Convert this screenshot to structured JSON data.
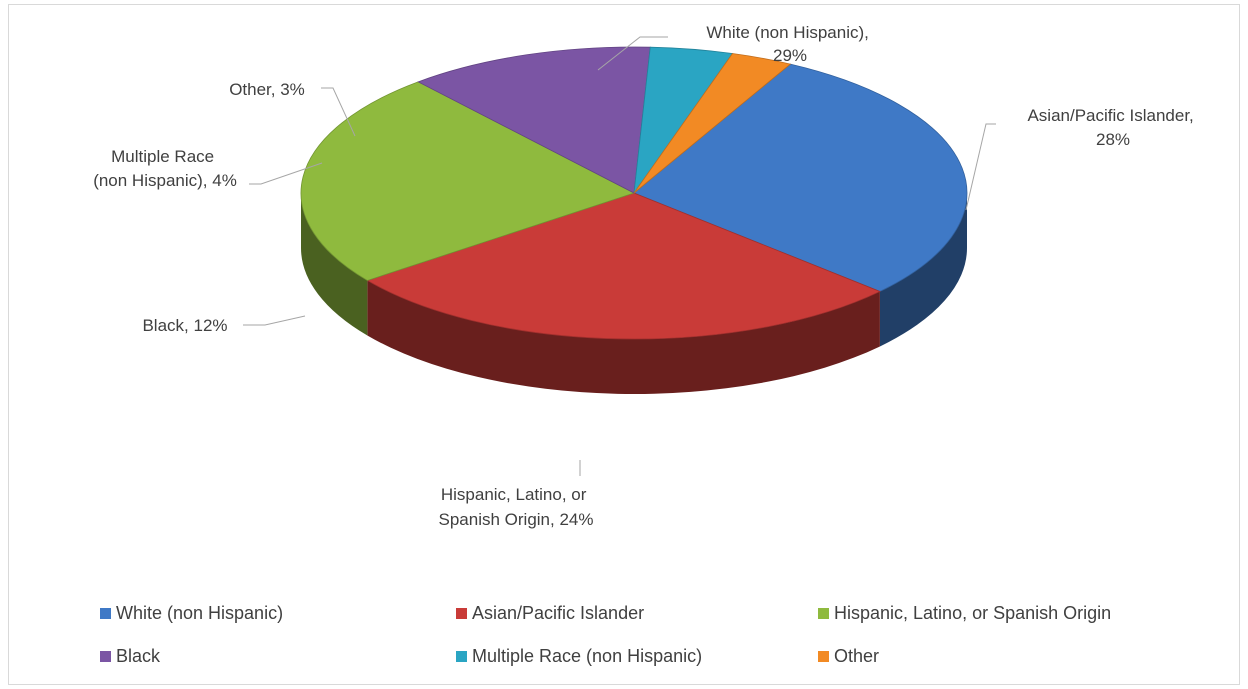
{
  "chart_data": {
    "type": "pie",
    "variant": "3d",
    "title": "",
    "slices": [
      {
        "name": "White (non Hispanic)",
        "value": 29,
        "label_line1": "White (non Hispanic),",
        "label_line2": "29%",
        "color": "#3f79c6"
      },
      {
        "name": "Asian/Pacific Islander",
        "value": 28,
        "label_line1": "Asian/Pacific Islander,",
        "label_line2": "28%",
        "color": "#c93b38"
      },
      {
        "name": "Hispanic, Latino, or Spanish Origin",
        "value": 24,
        "label_line1": "Hispanic, Latino, or",
        "label_line2": "Spanish Origin, 24%",
        "color": "#8fba3e"
      },
      {
        "name": "Black",
        "value": 12,
        "label_line1": "Black, 12%",
        "label_line2": "",
        "color": "#7b55a4"
      },
      {
        "name": "Multiple Race (non Hispanic)",
        "value": 4,
        "label_line1": "Multiple Race",
        "label_line2": "(non Hispanic), 4%",
        "color": "#2aa5c3"
      },
      {
        "name": "Other",
        "value": 3,
        "label_line1": "Other, 3%",
        "label_line2": "",
        "color": "#f28a24"
      }
    ],
    "legend": {
      "placement": "bottom",
      "entries": [
        "White (non Hispanic)",
        "Asian/Pacific Islander",
        "Hispanic, Latino, or Spanish Origin",
        "Black",
        "Multiple Race (non Hispanic)",
        "Other"
      ]
    }
  }
}
